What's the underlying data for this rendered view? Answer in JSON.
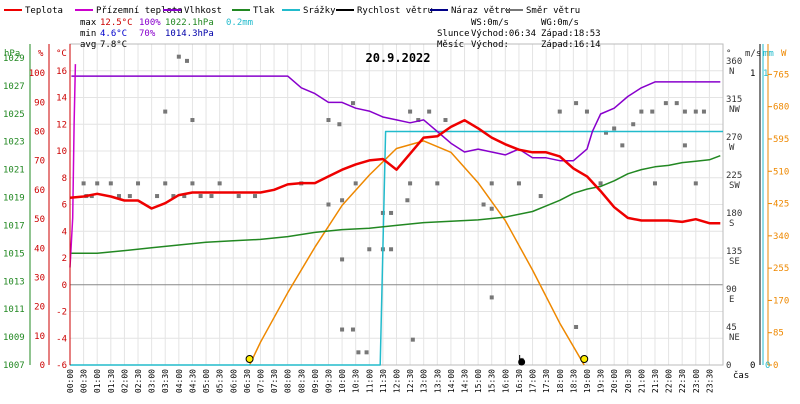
{
  "chart_data": {
    "type": "line",
    "title": "20.9.2022",
    "legend": [
      "Teplota",
      "Přízemní teplota",
      "Vlhkost",
      "Tlak",
      "Srážky",
      "Rychlost větru",
      "Náraz větru",
      "Směr větru"
    ],
    "colors": {
      "temp": "#ee0000",
      "ground": "#cc00cc",
      "hum": "#8800cc",
      "press": "#228822",
      "rain": "#22bbcc",
      "wind": "#000000",
      "gust": "#000088",
      "dir": "#777777",
      "sun": "#ee8800",
      "axis_temp": "#cc0000",
      "axis_press": "#228822"
    },
    "stats": {
      "max_label": "max",
      "min_label": "min",
      "avg_label": "avg",
      "max_temp": "12.5°C",
      "max_hum": "100%",
      "max_press": "1022.1hPa",
      "max_rain": "0.2mm",
      "min_temp": "4.6°C",
      "min_hum": "70%",
      "min_press": "1014.3hPa",
      "avg_temp": "7.8°C"
    },
    "info": {
      "ws": "WS:0m/s",
      "wg": "WG:0m/s",
      "slunce": "Slunce",
      "mesic": "Měsíc",
      "sun_rise": "Východ:06:34",
      "sun_set": "Západ:18:53",
      "moon_rise": "Východ:",
      "moon_set": "Západ:16:14"
    },
    "axes": {
      "hpa_title": "hPa",
      "pct_title": "%",
      "c_title": "°C",
      "deg_title": "°",
      "ms_title": "m/s",
      "mm_title": "mm",
      "w_title": "W",
      "x_title": "čas",
      "hpa_ticks": [
        "1029",
        "1027",
        "1025",
        "1023",
        "1021",
        "1019",
        "1017",
        "1015",
        "1013",
        "1011",
        "1009",
        "1007"
      ],
      "pct_ticks": [
        "100",
        "90",
        "80",
        "70",
        "60",
        "50",
        "40",
        "30",
        "20",
        "10",
        "0"
      ],
      "c_ticks": [
        "16",
        "14",
        "12",
        "10",
        "8",
        "6",
        "4",
        "2",
        "0",
        "-2",
        "-4",
        "-6"
      ],
      "deg_ticks": [
        "360",
        "315",
        "270",
        "225",
        "180",
        "135",
        "90",
        "45",
        "0"
      ],
      "dir_ticks": [
        "N",
        "NW",
        "W",
        "SW",
        "S",
        "SE",
        "E",
        "NE"
      ],
      "ms_ticks": [
        "1",
        "0"
      ],
      "mm_ticks": [
        "1",
        "0"
      ],
      "w_ticks": [
        "765",
        "680",
        "595",
        "510",
        "425",
        "340",
        "255",
        "170",
        "85",
        "0"
      ],
      "x_ticks": [
        "00:00",
        "00:30",
        "01:00",
        "01:30",
        "02:00",
        "02:30",
        "03:00",
        "03:30",
        "04:00",
        "04:30",
        "05:00",
        "05:30",
        "06:00",
        "06:30",
        "07:00",
        "07:30",
        "08:00",
        "08:30",
        "09:00",
        "09:30",
        "10:00",
        "10:30",
        "11:00",
        "11:30",
        "12:00",
        "12:30",
        "13:00",
        "13:30",
        "14:00",
        "14:30",
        "15:00",
        "15:30",
        "16:00",
        "16:30",
        "17:00",
        "17:30",
        "18:00",
        "18:30",
        "19:00",
        "19:30",
        "20:00",
        "20:30",
        "21:00",
        "21:30",
        "22:00",
        "22:30",
        "23:00",
        "23:30"
      ],
      "temp_range": [
        -6,
        18
      ],
      "press_range": [
        1007,
        1030
      ],
      "hum_range": [
        0,
        110
      ],
      "dir_range": [
        0,
        380
      ],
      "solar_range": [
        0,
        845
      ],
      "rain_range": [
        0,
        1.1
      ]
    },
    "series": [
      {
        "name": "Teplota",
        "key": "temp",
        "x": [
          0,
          0.5,
          1,
          1.5,
          2,
          2.5,
          3,
          3.5,
          4,
          4.5,
          5,
          5.5,
          6,
          6.5,
          7,
          7.5,
          8,
          8.5,
          9,
          9.5,
          10,
          10.5,
          11,
          11.5,
          12,
          12.5,
          13,
          13.5,
          14,
          14.5,
          15,
          15.5,
          16,
          16.5,
          17,
          17.5,
          18,
          18.5,
          19,
          19.5,
          20,
          20.5,
          21,
          21.5,
          22,
          22.5,
          23,
          23.5,
          23.9
        ],
        "y": [
          6.5,
          6.6,
          6.8,
          6.6,
          6.3,
          6.3,
          5.7,
          6.1,
          6.7,
          6.9,
          6.9,
          6.9,
          6.9,
          6.9,
          6.9,
          7.1,
          7.5,
          7.6,
          7.6,
          8.1,
          8.6,
          9.0,
          9.3,
          9.4,
          8.6,
          9.8,
          11.0,
          11.1,
          11.8,
          12.3,
          11.7,
          11.0,
          10.5,
          10.1,
          9.9,
          9.9,
          9.6,
          8.7,
          8.1,
          7.0,
          5.8,
          5.0,
          4.8,
          4.8,
          4.8,
          4.7,
          4.9,
          4.6,
          4.6
        ]
      },
      {
        "name": "Vlhkost",
        "key": "hum",
        "x": [
          0.05,
          1,
          2,
          3,
          4,
          5,
          6,
          7,
          8,
          8.5,
          9,
          9.5,
          10,
          10.5,
          11,
          11.5,
          12,
          12.5,
          13,
          13.5,
          14,
          14.5,
          15,
          15.5,
          16,
          16.5,
          17,
          17.5,
          18,
          18.5,
          19,
          19.2,
          19.5,
          20,
          20.5,
          21,
          21.5,
          22,
          22.5,
          23,
          23.5,
          23.9
        ],
        "y": [
          99,
          99,
          99,
          99,
          99,
          99,
          99,
          99,
          99,
          95,
          93,
          90,
          90,
          88,
          87,
          85,
          84,
          83,
          84,
          80,
          76,
          73,
          74,
          73,
          72,
          74,
          71,
          71,
          70,
          70,
          74,
          80,
          86,
          88,
          92,
          95,
          97,
          97,
          97,
          97,
          97,
          97
        ]
      },
      {
        "name": "Tlak",
        "key": "press",
        "x": [
          0,
          1,
          2,
          3,
          4,
          5,
          6,
          7,
          8,
          9,
          10,
          11,
          12,
          13,
          14,
          15,
          16,
          17,
          17.5,
          18,
          18.5,
          19,
          19.5,
          20,
          20.5,
          21,
          21.5,
          22,
          22.5,
          23,
          23.5,
          23.9
        ],
        "y": [
          1015.0,
          1015.0,
          1015.2,
          1015.4,
          1015.6,
          1015.8,
          1015.9,
          1016.0,
          1016.2,
          1016.5,
          1016.7,
          1016.8,
          1017.0,
          1017.2,
          1017.3,
          1017.4,
          1017.6,
          1018.0,
          1018.4,
          1018.8,
          1019.3,
          1019.6,
          1019.8,
          1020.2,
          1020.7,
          1021.0,
          1021.2,
          1021.3,
          1021.5,
          1021.6,
          1021.7,
          1022.0
        ]
      },
      {
        "name": "Přízemní teplota",
        "key": "ground",
        "x": [
          0,
          0.1,
          0.15,
          0.2
        ],
        "y": [
          1.3,
          5.0,
          12.0,
          16.5
        ]
      },
      {
        "name": "Srážky",
        "key": "rain",
        "x": [
          0,
          11.4,
          11.6,
          24
        ],
        "y": [
          0,
          0,
          0.8,
          0.8
        ]
      },
      {
        "name": "Sluneční záření",
        "key": "sun",
        "x": [
          6.6,
          7,
          8,
          9,
          10,
          11,
          12,
          13,
          14,
          15,
          16,
          17,
          18,
          18.9
        ],
        "y": [
          0,
          60,
          190,
          310,
          420,
          500,
          570,
          590,
          560,
          480,
          380,
          250,
          110,
          0
        ]
      },
      {
        "name": "Směr větru",
        "key": "dir",
        "points": [
          [
            0.5,
            215
          ],
          [
            1.0,
            215
          ],
          [
            1.5,
            215
          ],
          [
            2.5,
            215
          ],
          [
            3.5,
            215
          ],
          [
            4.5,
            215
          ],
          [
            5.5,
            215
          ],
          [
            8.5,
            215
          ],
          [
            10.5,
            215
          ],
          [
            12.5,
            215
          ],
          [
            13.5,
            215
          ],
          [
            15.5,
            215
          ],
          [
            16.5,
            215
          ],
          [
            19.5,
            215
          ],
          [
            21.5,
            215
          ],
          [
            23.0,
            215
          ],
          [
            0.8,
            200
          ],
          [
            1.8,
            200
          ],
          [
            2.2,
            200
          ],
          [
            3.2,
            200
          ],
          [
            4.2,
            200
          ],
          [
            5.2,
            200
          ],
          [
            6.2,
            200
          ],
          [
            6.8,
            200
          ],
          [
            0.6,
            200
          ],
          [
            3.8,
            200
          ],
          [
            4.8,
            200
          ],
          [
            17.3,
            200
          ],
          [
            3.5,
            300
          ],
          [
            4.5,
            290
          ],
          [
            4.0,
            365
          ],
          [
            4.3,
            360
          ],
          [
            9.5,
            290
          ],
          [
            9.9,
            285
          ],
          [
            10.4,
            310
          ],
          [
            12.5,
            300
          ],
          [
            12.8,
            290
          ],
          [
            13.2,
            300
          ],
          [
            13.8,
            290
          ],
          [
            11.5,
            180
          ],
          [
            11.8,
            180
          ],
          [
            9.5,
            190
          ],
          [
            10.0,
            195
          ],
          [
            12.4,
            195
          ],
          [
            15.2,
            190
          ],
          [
            15.5,
            185
          ],
          [
            11.0,
            137
          ],
          [
            11.5,
            137
          ],
          [
            11.8,
            137
          ],
          [
            10.0,
            125
          ],
          [
            15.5,
            80
          ],
          [
            10.6,
            15
          ],
          [
            10.9,
            15
          ],
          [
            10.0,
            42
          ],
          [
            10.4,
            42
          ],
          [
            12.6,
            30
          ],
          [
            16.6,
            6
          ],
          [
            18.6,
            45
          ],
          [
            18.0,
            300
          ],
          [
            18.6,
            310
          ],
          [
            19.0,
            300
          ],
          [
            19.7,
            275
          ],
          [
            20.0,
            280
          ],
          [
            20.3,
            260
          ],
          [
            20.7,
            285
          ],
          [
            21.4,
            300
          ],
          [
            21.9,
            310
          ],
          [
            22.3,
            310
          ],
          [
            22.6,
            300
          ],
          [
            23.0,
            300
          ],
          [
            23.3,
            300
          ],
          [
            21.0,
            300
          ],
          [
            22.6,
            260
          ]
        ]
      },
      {
        "name": "Rychlost větru",
        "key": "wind",
        "points": [
          [
            16.6,
            0.02
          ]
        ]
      }
    ],
    "sun_markers": [
      6.6,
      18.9
    ]
  }
}
